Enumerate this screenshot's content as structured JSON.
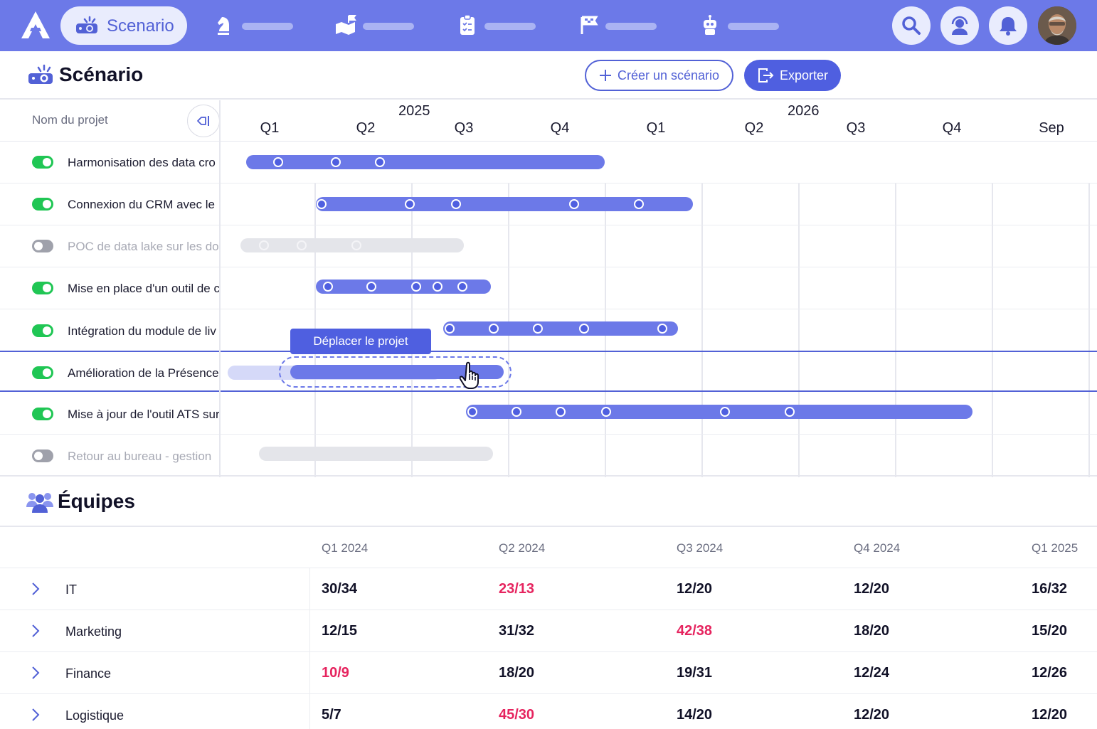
{
  "nav": {
    "active_tab": "Scenario",
    "colors": {
      "bar": "#6c79e8",
      "accent": "#5261d6"
    },
    "icons": [
      "chess-knight-icon",
      "map-icon",
      "clipboard-checklist-icon",
      "flags-icon",
      "robot-icon"
    ],
    "action_icons": [
      "search-icon",
      "support-agent-icon",
      "bell-icon",
      "user-avatar"
    ]
  },
  "header": {
    "title": "Scénario",
    "create_label": "Créer un scénario",
    "export_label": "Exporter"
  },
  "gantt": {
    "project_column_title": "Nom du projet",
    "years": [
      "2025",
      "2026"
    ],
    "quarters": [
      "Q1",
      "Q2",
      "Q3",
      "Q4",
      "Q1",
      "Q2",
      "Q3",
      "Q4",
      "Sep"
    ],
    "tooltip": "Déplacer le projet",
    "projects": [
      {
        "name": "Harmonisation des data cro",
        "enabled": true
      },
      {
        "name": "Connexion du CRM avec le",
        "enabled": true
      },
      {
        "name": "POC de data lake sur les do",
        "enabled": false
      },
      {
        "name": "Mise en place d'un outil de c",
        "enabled": true
      },
      {
        "name": "Intégration du module de liv",
        "enabled": true
      },
      {
        "name": "Amélioration de la Présence",
        "enabled": true,
        "selected": true
      },
      {
        "name": "Mise à jour de l'outil ATS sur",
        "enabled": true
      },
      {
        "name": "Retour au bureau - gestion",
        "enabled": false
      }
    ]
  },
  "teams": {
    "title": "Équipes",
    "quarters": [
      "Q1 2024",
      "Q2 2024",
      "Q3 2024",
      "Q4 2024",
      "Q1 2025"
    ],
    "over_color": "#e6245f",
    "rows": [
      {
        "name": "IT",
        "values": [
          "30/34",
          "23/13",
          "12/20",
          "12/20",
          "16/32"
        ],
        "over": [
          false,
          true,
          false,
          false,
          false
        ]
      },
      {
        "name": "Marketing",
        "values": [
          "12/15",
          "31/32",
          "42/38",
          "18/20",
          "15/20"
        ],
        "over": [
          false,
          false,
          true,
          false,
          false
        ]
      },
      {
        "name": "Finance",
        "values": [
          "10/9",
          "18/20",
          "19/31",
          "12/24",
          "12/26"
        ],
        "over": [
          true,
          false,
          false,
          false,
          false
        ]
      },
      {
        "name": "Logistique",
        "values": [
          "5/7",
          "45/30",
          "14/20",
          "12/20",
          "12/20"
        ],
        "over": [
          false,
          true,
          false,
          false,
          false
        ]
      }
    ]
  }
}
